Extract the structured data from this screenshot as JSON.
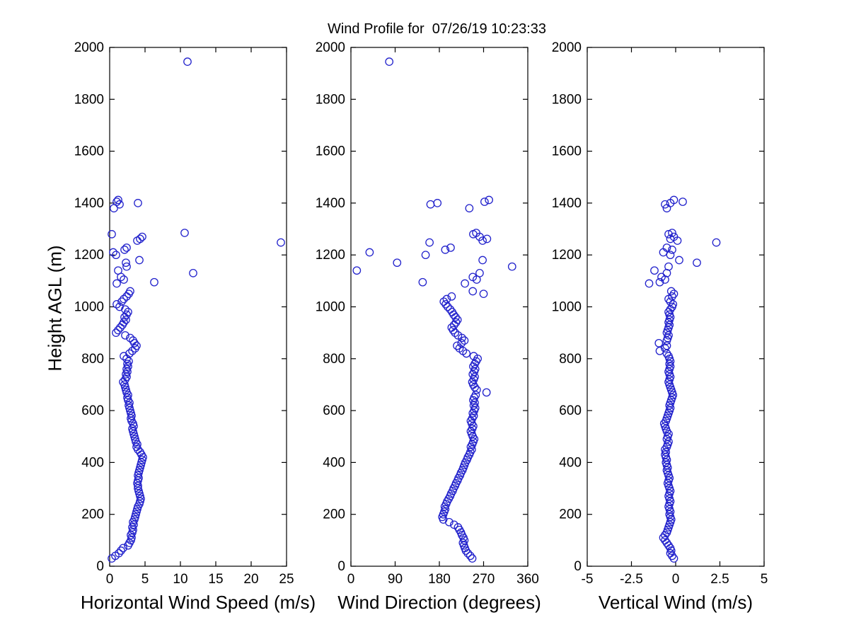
{
  "figure": {
    "background": "#ffffff",
    "axis_color": "#000000"
  },
  "chart_data": {
    "type": "scatter",
    "title": "Wind Profile for  07/26/19 10:23:33",
    "ylabel": "Height AGL (m)",
    "ylim": [
      0,
      2000
    ],
    "yticks": [
      0,
      200,
      400,
      600,
      800,
      1000,
      1200,
      1400,
      1600,
      1800,
      2000
    ],
    "ytick_labels": [
      "0",
      "200",
      "400",
      "600",
      "800",
      "1000",
      "1200",
      "1400",
      "1600",
      "1800",
      "2000"
    ],
    "grid": false,
    "legend": "none",
    "marker": {
      "shape": "circle",
      "color": "#2222cc",
      "fill": "none"
    },
    "heights": [
      30,
      40,
      50,
      60,
      70,
      80,
      90,
      100,
      110,
      120,
      130,
      140,
      150,
      160,
      170,
      180,
      190,
      200,
      210,
      220,
      230,
      240,
      250,
      260,
      270,
      280,
      290,
      300,
      310,
      320,
      330,
      340,
      350,
      360,
      370,
      380,
      390,
      400,
      410,
      420,
      430,
      440,
      450,
      460,
      470,
      480,
      490,
      500,
      510,
      520,
      530,
      540,
      550,
      560,
      570,
      580,
      590,
      600,
      610,
      620,
      630,
      640,
      650,
      660,
      670,
      680,
      690,
      700,
      710,
      720,
      730,
      740,
      750,
      760,
      770,
      780,
      790,
      800,
      810,
      820,
      830,
      840,
      850,
      860,
      870,
      880,
      890,
      900,
      910,
      920,
      930,
      940,
      950,
      960,
      970,
      980,
      990,
      1000,
      1010,
      1020,
      1030,
      1040,
      1050,
      1060,
      1090,
      1095,
      1105,
      1115,
      1130,
      1140,
      1155,
      1170,
      1180,
      1200,
      1210,
      1220,
      1228,
      1248,
      1255,
      1262,
      1270,
      1280,
      1285,
      1380,
      1395,
      1400,
      1405,
      1412,
      1945
    ],
    "panels": [
      {
        "name": "horizontal-wind-speed",
        "xlabel": "Horizontal Wind Speed (m/s)",
        "xlim": [
          0,
          25
        ],
        "xticks": [
          0,
          5,
          10,
          15,
          20,
          25
        ],
        "xtick_labels": [
          "0",
          "5",
          "10",
          "15",
          "20",
          "25"
        ],
        "values": [
          0.3,
          0.8,
          1.3,
          1.6,
          1.9,
          2.6,
          2.8,
          3.0,
          3.1,
          3.0,
          3.2,
          3.3,
          3.2,
          3.4,
          3.3,
          3.5,
          3.6,
          3.7,
          3.8,
          3.9,
          4.0,
          4.2,
          4.3,
          4.4,
          4.3,
          4.2,
          4.1,
          4.0,
          4.0,
          3.9,
          4.0,
          4.1,
          4.0,
          4.1,
          4.2,
          4.3,
          4.4,
          4.5,
          4.6,
          4.7,
          4.5,
          4.3,
          4.0,
          3.8,
          3.9,
          3.7,
          3.6,
          3.5,
          3.4,
          3.3,
          3.2,
          3.4,
          3.3,
          3.1,
          3.0,
          3.1,
          3.0,
          2.9,
          2.8,
          2.7,
          2.8,
          2.6,
          2.5,
          2.6,
          2.4,
          2.3,
          2.2,
          2.1,
          1.9,
          2.2,
          2.4,
          2.3,
          2.5,
          2.4,
          2.6,
          2.5,
          2.7,
          2.4,
          2.0,
          2.8,
          3.2,
          3.6,
          3.8,
          3.5,
          3.3,
          2.9,
          2.2,
          0.9,
          1.2,
          1.5,
          1.8,
          2.0,
          2.3,
          2.1,
          2.4,
          2.6,
          2.2,
          1.4,
          1.0,
          1.7,
          2.0,
          2.4,
          2.7,
          2.9,
          1.0,
          6.3,
          2.0,
          1.6,
          11.8,
          1.2,
          2.4,
          2.3,
          4.2,
          0.9,
          0.5,
          2.1,
          2.4,
          24.2,
          3.9,
          4.3,
          4.6,
          0.3,
          10.6,
          0.6,
          1.4,
          4.0,
          1.0,
          1.2,
          11.0
        ]
      },
      {
        "name": "wind-direction",
        "xlabel": "Wind Direction (degrees)",
        "xlim": [
          0,
          360
        ],
        "xticks": [
          0,
          90,
          180,
          270,
          360
        ],
        "xtick_labels": [
          "0",
          "90",
          "180",
          "270",
          "360"
        ],
        "values": [
          247,
          243,
          238,
          234,
          232,
          230,
          228,
          231,
          229,
          226,
          224,
          221,
          218,
          210,
          200,
          188,
          186,
          188,
          190,
          192,
          191,
          194,
          196,
          199,
          202,
          204,
          207,
          209,
          212,
          214,
          217,
          219,
          222,
          224,
          227,
          229,
          231,
          233,
          236,
          238,
          241,
          243,
          246,
          244,
          247,
          249,
          251,
          248,
          246,
          244,
          247,
          249,
          246,
          244,
          247,
          250,
          248,
          251,
          253,
          250,
          252,
          249,
          251,
          254,
          276,
          256,
          252,
          249,
          247,
          250,
          252,
          248,
          251,
          253,
          249,
          252,
          255,
          258,
          250,
          235,
          228,
          221,
          216,
          225,
          231,
          226,
          218,
          212,
          208,
          205,
          210,
          214,
          217,
          213,
          209,
          206,
          202,
          197,
          193,
          189,
          195,
          205,
          270,
          248,
          232,
          146,
          256,
          248,
          262,
          12,
          328,
          94,
          268,
          152,
          38,
          192,
          203,
          160,
          268,
          277,
          262,
          249,
          255,
          241,
          162,
          176,
          272,
          281,
          78
        ]
      },
      {
        "name": "vertical-wind",
        "xlabel": "Vertical Wind (m/s)",
        "xlim": [
          -5,
          5
        ],
        "xticks": [
          -5,
          -2.5,
          0,
          2.5,
          5
        ],
        "xtick_labels": [
          "-5",
          "-2.5",
          "0",
          "2.5",
          "5"
        ],
        "values": [
          -0.1,
          -0.2,
          -0.3,
          -0.25,
          -0.3,
          -0.4,
          -0.5,
          -0.6,
          -0.7,
          -0.6,
          -0.5,
          -0.45,
          -0.4,
          -0.35,
          -0.3,
          -0.25,
          -0.3,
          -0.35,
          -0.3,
          -0.35,
          -0.4,
          -0.35,
          -0.3,
          -0.35,
          -0.4,
          -0.35,
          -0.3,
          -0.35,
          -0.4,
          -0.45,
          -0.4,
          -0.35,
          -0.4,
          -0.45,
          -0.5,
          -0.45,
          -0.5,
          -0.55,
          -0.5,
          -0.55,
          -0.6,
          -0.55,
          -0.6,
          -0.5,
          -0.45,
          -0.4,
          -0.5,
          -0.45,
          -0.4,
          -0.5,
          -0.55,
          -0.6,
          -0.65,
          -0.55,
          -0.5,
          -0.45,
          -0.4,
          -0.35,
          -0.3,
          -0.35,
          -0.3,
          -0.25,
          -0.2,
          -0.15,
          -0.2,
          -0.25,
          -0.3,
          -0.35,
          -0.4,
          -0.35,
          -0.3,
          -0.35,
          -0.4,
          -0.35,
          -0.3,
          -0.35,
          -0.3,
          -0.35,
          -0.4,
          -0.5,
          -0.9,
          -0.6,
          -0.5,
          -0.95,
          -0.5,
          -0.45,
          -0.4,
          -0.5,
          -0.45,
          -0.4,
          -0.35,
          -0.4,
          -0.35,
          -0.3,
          -0.35,
          -0.4,
          -0.3,
          -0.2,
          -0.15,
          -0.3,
          -0.4,
          -0.2,
          -0.1,
          -0.25,
          -1.5,
          -0.9,
          -0.6,
          -0.8,
          -0.5,
          -1.2,
          -0.4,
          1.2,
          0.2,
          -0.3,
          -0.7,
          -0.2,
          -0.5,
          2.3,
          0.1,
          -0.3,
          -0.1,
          -0.4,
          -0.2,
          -0.5,
          -0.6,
          -0.3,
          0.4,
          -0.1,
          null
        ]
      }
    ]
  }
}
